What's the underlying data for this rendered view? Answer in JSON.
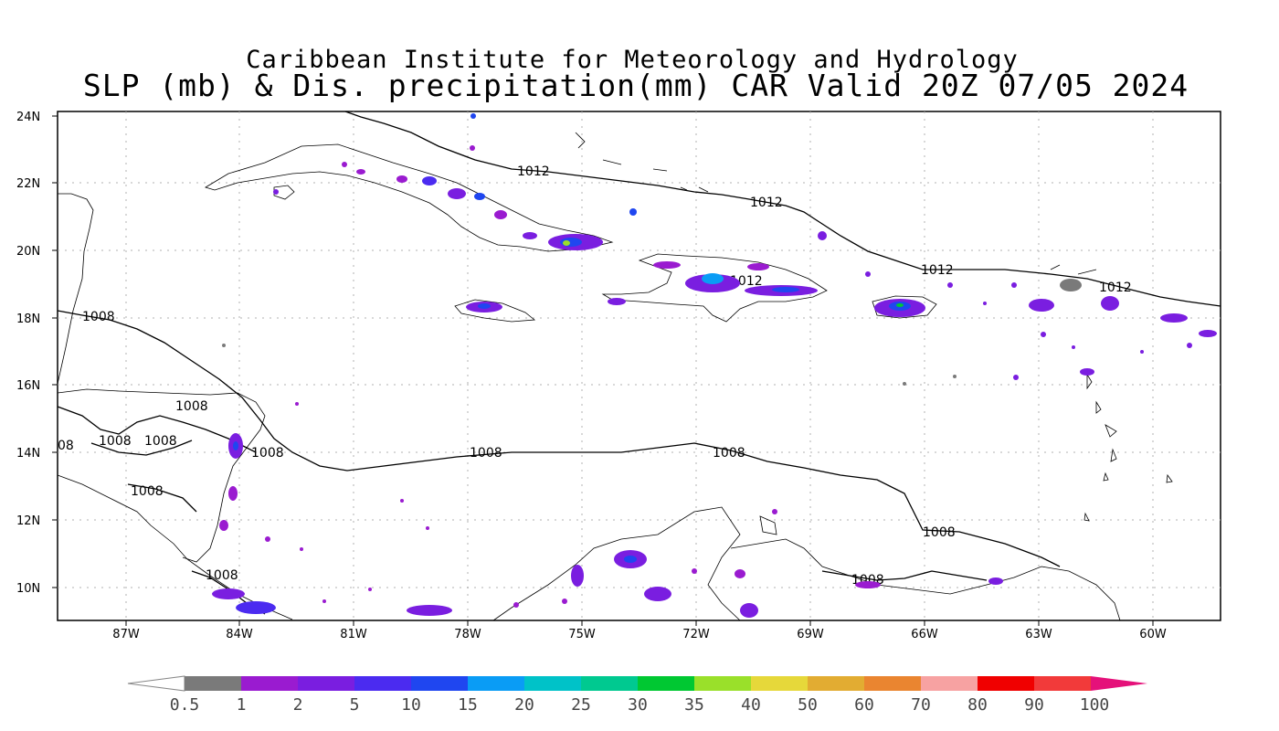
{
  "title": {
    "line1": "Caribbean Institute for Meteorology and Hydrology",
    "line2": "SLP (mb) & Dis. precipitation(mm) CAR Valid 20Z 07/05 2024"
  },
  "axes": {
    "lat_labels": [
      "24N",
      "22N",
      "20N",
      "18N",
      "16N",
      "14N",
      "12N",
      "10N"
    ],
    "lon_labels": [
      "87W",
      "84W",
      "81W",
      "78W",
      "75W",
      "72W",
      "69W",
      "66W",
      "63W",
      "60W"
    ]
  },
  "isobars": [
    {
      "text": "1012"
    },
    {
      "text": "1012"
    },
    {
      "text": "1012"
    },
    {
      "text": "1012"
    },
    {
      "text": "1012"
    },
    {
      "text": "1008"
    },
    {
      "text": "1008"
    },
    {
      "text": "1008"
    },
    {
      "text": "1008"
    },
    {
      "text": "1008"
    },
    {
      "text": "1008"
    },
    {
      "text": "1008"
    },
    {
      "text": "08"
    },
    {
      "text": "1008"
    },
    {
      "text": "1008"
    },
    {
      "text": "1008"
    },
    {
      "text": "1008"
    }
  ],
  "colorbar": {
    "labels": [
      "0.5",
      "1",
      "2",
      "5",
      "10",
      "15",
      "20",
      "25",
      "30",
      "35",
      "40",
      "50",
      "60",
      "70",
      "80",
      "90",
      "100"
    ],
    "colors": [
      "#7a7a7a",
      "#9a1bd0",
      "#7a1ee0",
      "#4b2bf0",
      "#1f46f0",
      "#0a9cf5",
      "#00c2c8",
      "#00c990",
      "#00c832",
      "#9ae02a",
      "#e6d83a",
      "#e2ac32",
      "#ea8530",
      "#f7a2a2",
      "#f00000",
      "#f23a3a"
    ],
    "end_color": "#e5117a"
  }
}
